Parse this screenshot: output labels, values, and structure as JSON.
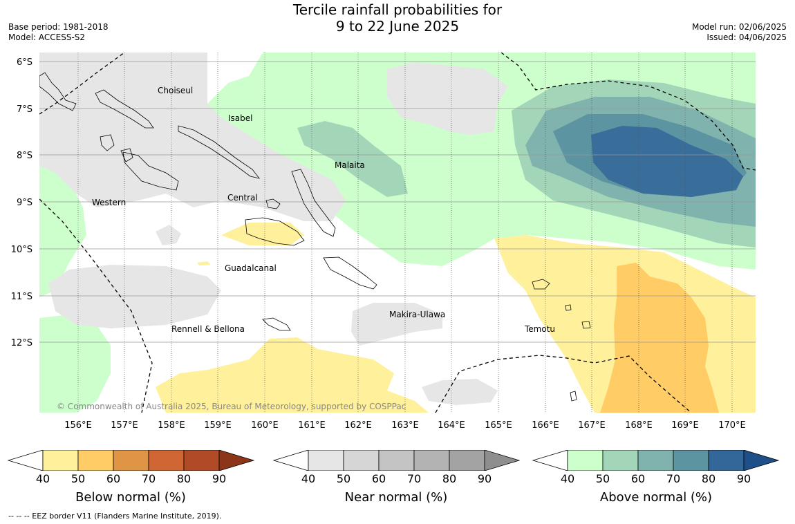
{
  "title": {
    "line1": "Tercile rainfall probabilities for",
    "line2": "9 to 22 June 2025"
  },
  "meta": {
    "base_period": "Base period: 1981-2018",
    "model": "Model: ACCESS-S2",
    "model_run": "Model run: 02/06/2025",
    "issued": "Issued: 04/06/2025"
  },
  "map": {
    "lat_labels": [
      "6°S",
      "7°S",
      "8°S",
      "9°S",
      "10°S",
      "11°S",
      "12°S"
    ],
    "lon_labels": [
      "156°E",
      "157°E",
      "158°E",
      "159°E",
      "160°E",
      "161°E",
      "162°E",
      "163°E",
      "164°E",
      "165°E",
      "166°E",
      "167°E",
      "168°E",
      "169°E",
      "170°E"
    ],
    "region_labels": {
      "choiseul": "Choiseul",
      "isabel": "Isabel",
      "malaita": "Malaita",
      "western": "Western",
      "central": "Central",
      "guadalcanal": "Guadalcanal",
      "makira": "Makira-Ulawa",
      "rennell": "Rennell & Bellona",
      "temotu": "Temotu"
    },
    "copyright": "© Commonwealth of Australia 2025, Bureau of Meteorology, supported by COSPPac"
  },
  "colorbars": [
    {
      "label": "Below normal (%)",
      "ticks": [
        "40",
        "50",
        "60",
        "70",
        "80",
        "90"
      ],
      "colors": [
        "#fff09c",
        "#ffcc66",
        "#e09445",
        "#cf6634",
        "#b04a27",
        "#8c3518"
      ]
    },
    {
      "label": "Near normal (%)",
      "ticks": [
        "40",
        "50",
        "60",
        "70",
        "80",
        "90"
      ],
      "colors": [
        "#e6e6e6",
        "#d6d6d6",
        "#c4c4c4",
        "#b3b3b3",
        "#a3a3a3",
        "#8e8e8e"
      ]
    },
    {
      "label": "Above normal (%)",
      "ticks": [
        "40",
        "50",
        "60",
        "70",
        "80",
        "90"
      ],
      "colors": [
        "#ccffcc",
        "#a3d6b8",
        "#80b3ad",
        "#5c94a1",
        "#336699",
        "#1f4f88"
      ]
    }
  ],
  "footer": "--  --  -- EEZ border V11 (Flanders Marine Institute, 2019)."
}
